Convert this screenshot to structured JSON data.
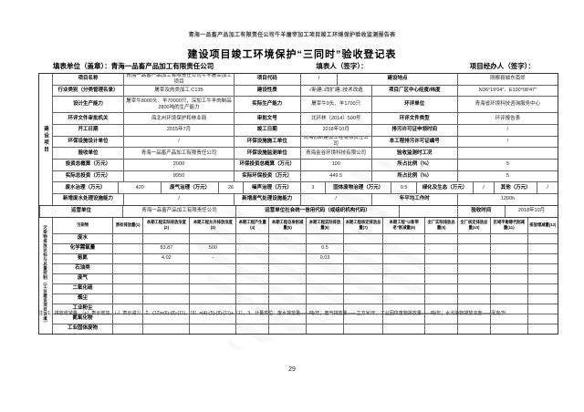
{
  "document": {
    "top_note": "青海一品畜产品加工有限责任公司牛羊屠宰加工项目竣工环境保护验收监测报告表",
    "title": "建设项目竣工环境保护“三同时”验收登记表",
    "fill_unit": "填表单位（盖章）：青海一品畜产品加工有限责任公司",
    "fill_person": "填表人（签字）：",
    "project_agent": "项目经办人（签字）：",
    "footnote": "注：1、排放增减量：（+）表示增加，（-）表示减少。2、(12)=(6)-(8)-(11)，（9）=(4)-(5)-(8)-(11)+（1）。3、计量单位：废水排放量——吨/年；废气排放量——立方米/年；工业固体废物排放量——吨/年；水污染物排放浓度——毫克/升",
    "page_number": "29"
  },
  "construction": {
    "side_label": "建设项目",
    "rows": [
      {
        "h": 11,
        "cells": [
          {
            "t": "项目名称",
            "w": 14,
            "lab": 1
          },
          {
            "t": "青海一品畜产品加工有限责任公司牛羊屠宰加工项目",
            "w": 22
          },
          {
            "t": "项目代码",
            "w": 13,
            "lab": 1
          },
          {
            "t": "/",
            "w": 7
          },
          {
            "t": "建设地点",
            "w": 24,
            "lab": 1
          },
          {
            "t": "刚察县城东南郊",
            "w": 20
          }
        ]
      },
      {
        "h": 11,
        "cells": [
          {
            "t": "行业类别（分类管理名录）",
            "w": 14,
            "lab": 1
          },
          {
            "t": "屠宰及肉类加工 C135",
            "w": 22
          },
          {
            "t": "建设性质",
            "w": 13,
            "lab": 1
          },
          {
            "t": "√新建□改扩建□技术改造",
            "w": 14
          },
          {
            "t": "项目厂区中心经度/纬度",
            "w": 17,
            "lab": 1
          },
          {
            "t": "N36°19′04″、E100°08′47″",
            "w": 20
          }
        ]
      },
      {
        "h": 17,
        "cells": [
          {
            "t": "设计生产能力",
            "w": 14,
            "lab": 1
          },
          {
            "t": "屠宰牛8000头、羊70000只，深加工牛羊肉制品2800吨的生产能力",
            "w": 22
          },
          {
            "t": "实际生产能力",
            "w": 13,
            "lab": 1
          },
          {
            "t": "屠宰牛9头、羊1700只",
            "w": 14
          },
          {
            "t": "环评单位",
            "w": 17,
            "lab": 1
          },
          {
            "t": "青海省环境科技咨询服务中心",
            "w": 20
          }
        ]
      },
      {
        "h": 11,
        "cells": [
          {
            "t": "环评文件审批机关",
            "w": 14,
            "lab": 1
          },
          {
            "t": "海北州环境保护和林业局",
            "w": 22
          },
          {
            "t": "审批文号",
            "w": 13,
            "lab": 1
          },
          {
            "t": "北环林〔2014〕500号",
            "w": 14
          },
          {
            "t": "环评文件类型",
            "w": 17,
            "lab": 1
          },
          {
            "t": "环评报告表",
            "w": 20
          }
        ]
      },
      {
        "h": 11,
        "cells": [
          {
            "t": "开工日期",
            "w": 14,
            "lab": 1
          },
          {
            "t": "2015年7月",
            "w": 22
          },
          {
            "t": "竣工日期",
            "w": 13,
            "lab": 1
          },
          {
            "t": "2018年10月",
            "w": 14
          },
          {
            "t": "排污许可证申领时间",
            "w": 17,
            "lab": 1
          },
          {
            "t": "/",
            "w": 20
          }
        ]
      },
      {
        "h": 11,
        "cells": [
          {
            "t": "环保设施设计单位",
            "w": 14,
            "lab": 1
          },
          {
            "t": "/",
            "w": 22
          },
          {
            "t": "环保设施施工单位",
            "w": 13,
            "lab": 1
          },
          {
            "t": "青海创新建设工程有限责任公司",
            "w": 14
          },
          {
            "t": "本工程排污许可证编号",
            "w": 17,
            "lab": 1
          },
          {
            "t": "/",
            "w": 20
          }
        ]
      },
      {
        "h": 11,
        "cells": [
          {
            "t": "验收单位",
            "w": 14,
            "lab": 1
          },
          {
            "t": "青海一品畜产品加工有限责任公司",
            "w": 22
          },
          {
            "t": "环保设施监测单位",
            "w": 13,
            "lab": 1
          },
          {
            "t": "青海金谷环境科技有限公司",
            "w": 14
          },
          {
            "t": "验收监测时工况",
            "w": 17,
            "lab": 1
          },
          {
            "t": "",
            "w": 20
          }
        ]
      },
      {
        "h": 11,
        "cells": [
          {
            "t": "投资总概算（万元）",
            "w": 14,
            "lab": 1
          },
          {
            "t": "2000",
            "w": 22
          },
          {
            "t": "环保投资总概算（万元）",
            "w": 13,
            "lab": 1
          },
          {
            "t": "100",
            "w": 14
          },
          {
            "t": "所占比例（%）",
            "w": 17,
            "lab": 1
          },
          {
            "t": "5",
            "w": 20
          }
        ]
      },
      {
        "h": 11,
        "cells": [
          {
            "t": "实际总投资（万元）",
            "w": 14,
            "lab": 1
          },
          {
            "t": "8950",
            "w": 22
          },
          {
            "t": "实际环保投资（万元）",
            "w": 13,
            "lab": 1
          },
          {
            "t": "449.5",
            "w": 14
          },
          {
            "t": "所占比例（%）",
            "w": 17,
            "lab": 1
          },
          {
            "t": "5",
            "w": 20
          }
        ]
      },
      {
        "h": 11,
        "cells": [
          {
            "t": "废水治理（万元）",
            "w": 14,
            "lab": 1
          },
          {
            "t": "420",
            "w": 9
          },
          {
            "t": "废气治理（万元）",
            "w": 12,
            "lab": 1
          },
          {
            "t": "26",
            "w": 5
          },
          {
            "t": "噪声治理（万元）",
            "w": 12,
            "lab": 1
          },
          {
            "t": "3",
            "w": 5
          },
          {
            "t": "固体废物治理（万元）",
            "w": 14,
            "lab": 1
          },
          {
            "t": "0.5",
            "w": 5
          },
          {
            "t": "绿化及生态（万元）",
            "w": 12,
            "lab": 1
          },
          {
            "t": "/",
            "w": 4
          },
          {
            "t": "其他（万元）",
            "w": 9,
            "lab": 1
          },
          {
            "t": "/",
            "w": 4
          }
        ]
      },
      {
        "h": 11,
        "cells": [
          {
            "t": "新增废水处理设施能力",
            "w": 14,
            "lab": 1
          },
          {
            "t": "/",
            "w": 22
          },
          {
            "t": "新增废气处理设施能力",
            "w": 13,
            "lab": 1
          },
          {
            "t": "/",
            "w": 14
          },
          {
            "t": "年平均工作时",
            "w": 17,
            "lab": 1
          },
          {
            "t": "1200h",
            "w": 20
          }
        ]
      }
    ]
  },
  "operator_row": {
    "h": 12,
    "cells": [
      {
        "t": "运营单位",
        "w": 16,
        "lab": 1
      },
      {
        "t": "青海一品畜产品加工有限责任公司",
        "w": 22
      },
      {
        "t": "运营单位社会统一信用代码（或组织机构代码）",
        "w": 32,
        "lab": 1
      },
      {
        "t": "",
        "w": 11
      },
      {
        "t": "验收时间",
        "w": 9,
        "lab": 1
      },
      {
        "t": "2018年10月",
        "w": 10
      }
    ]
  },
  "pollutants": {
    "side_label": "污染物排放达标与总量控制（工业建设项目详填）",
    "columns": [
      {
        "t": "污染物",
        "w": 12.5
      },
      {
        "t": "原有排放量(1)",
        "w": 6
      },
      {
        "t": "本期工程实际排放浓度(2)",
        "w": 9.5
      },
      {
        "t": "本期工程允许排放浓度(3)",
        "w": 9.5
      },
      {
        "t": "本期工程产生量(4)",
        "w": 6.5
      },
      {
        "t": "本期工程自身削减量(5)",
        "w": 7.5
      },
      {
        "t": "本期工程实际排放量(6)",
        "w": 7.5
      },
      {
        "t": "本期工程核定排放总量(7)",
        "w": 8
      },
      {
        "t": "本期工程“以新带老”削减量(8)",
        "w": 8.5
      },
      {
        "t": "全厂实际排放总量(9)",
        "w": 6.5
      },
      {
        "t": "全厂核定排放总量(10)",
        "w": 6.5
      },
      {
        "t": "区域平衡替代削减量(11)",
        "w": 7.5
      },
      {
        "t": "排放增减量(12)",
        "w": 6
      }
    ],
    "rows": [
      [
        "废水",
        "",
        "",
        "",
        "",
        "",
        "",
        "",
        "",
        "",
        "",
        "",
        ""
      ],
      [
        "化学需氧量",
        "",
        "83.87",
        "500",
        "",
        "",
        "0.5",
        "",
        "",
        "",
        "",
        "",
        ""
      ],
      [
        "氨氮",
        "",
        "4.02",
        "-",
        "",
        "",
        "0.03",
        "",
        "",
        "",
        "",
        "",
        ""
      ],
      [
        "石油类",
        "",
        "",
        "",
        "",
        "",
        "",
        "",
        "",
        "",
        "",
        "",
        ""
      ],
      [
        "废气",
        "",
        "",
        "",
        "",
        "",
        "",
        "",
        "",
        "",
        "",
        "",
        ""
      ],
      [
        "二氧化硫",
        "",
        "",
        "",
        "",
        "",
        "",
        "",
        "",
        "",
        "",
        "",
        ""
      ],
      [
        "烟尘",
        "",
        "",
        "",
        "",
        "",
        "",
        "",
        "",
        "",
        "",
        "",
        ""
      ],
      [
        "工业粉尘",
        "",
        "",
        "",
        "",
        "",
        "",
        "",
        "",
        "",
        "",
        "",
        ""
      ],
      [
        "氮氧化物",
        "",
        "",
        "",
        "",
        "",
        "",
        "",
        "",
        "",
        "",
        "",
        ""
      ],
      [
        "工业固体废物",
        "",
        "",
        "",
        "",
        "",
        "",
        "",
        "",
        "",
        "",
        "",
        ""
      ]
    ]
  }
}
